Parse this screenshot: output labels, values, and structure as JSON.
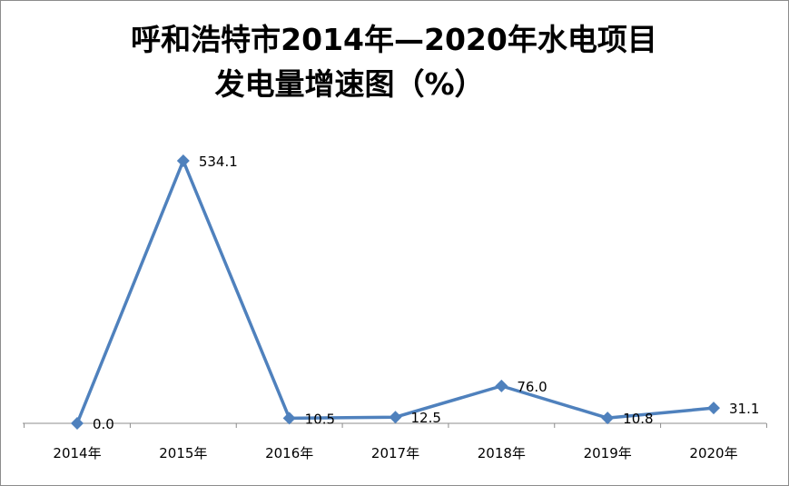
{
  "chart_data": {
    "type": "line",
    "title_lines": [
      "呼和浩特市2014年—2020年水电项目",
      "发电量增速图（%）"
    ],
    "categories": [
      "2014年",
      "2015年",
      "2016年",
      "2017年",
      "2018年",
      "2019年",
      "2020年"
    ],
    "series": [
      {
        "values": [
          0.0,
          534.1,
          10.5,
          12.5,
          76.0,
          10.8,
          31.1
        ],
        "labels": [
          "0.0",
          "534.1",
          "10.5",
          "12.5",
          "76.0",
          "10.8",
          "31.1"
        ],
        "color": "#4f81bd",
        "marker": "diamond"
      }
    ],
    "xlabel": "",
    "ylabel": "",
    "ylim": [
      0,
      540
    ],
    "y_axis_visible": false,
    "grid": false,
    "legend": "none"
  }
}
